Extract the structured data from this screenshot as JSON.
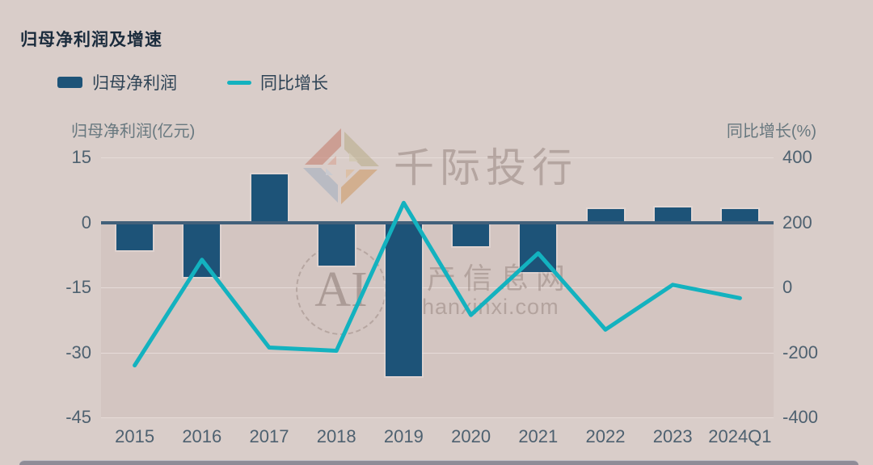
{
  "title": "归母净利润及增速",
  "legend": {
    "bar_label": "归母净利润",
    "line_label": "同比增长"
  },
  "watermark": {
    "brand": "千际投行",
    "seal_text": "AI",
    "site_name": "资产信息网",
    "site_url": "zichanxinxi.com"
  },
  "colors": {
    "background": "#d9cdc9",
    "plot_negative_bg": "#d3c5c1",
    "gridline": "#e6dbd8",
    "zero_line": "#42607a",
    "bar": "#1d5378",
    "line": "#13b2bf",
    "tick_text": "#4e6170",
    "bottom_strip": "#8e8c97"
  },
  "chart_data": {
    "type": "bar+line",
    "title": "归母净利润及增速",
    "categories": [
      "2015",
      "2016",
      "2017",
      "2018",
      "2019",
      "2020",
      "2021",
      "2022",
      "2023",
      "2024Q1"
    ],
    "series": [
      {
        "name": "归母净利润",
        "type": "bar",
        "axis": "left",
        "values": [
          -6.5,
          -12.5,
          11,
          -10,
          -35.5,
          -5.5,
          -11.5,
          3,
          3.5,
          3
        ]
      },
      {
        "name": "同比增长",
        "type": "line",
        "axis": "right",
        "values": [
          -240,
          85,
          -185,
          -195,
          260,
          -85,
          105,
          -130,
          8,
          -33
        ]
      }
    ],
    "left_axis_title": "归母净利润(亿元)",
    "right_axis_title": "同比增长(%)",
    "left_ticks": [
      15,
      0,
      -15,
      -30,
      -45
    ],
    "right_ticks": [
      400,
      200,
      0,
      -200,
      -400
    ],
    "left_range": [
      -45,
      15
    ],
    "right_range": [
      -400,
      400
    ],
    "grid": true,
    "legend_position": "top-left"
  }
}
